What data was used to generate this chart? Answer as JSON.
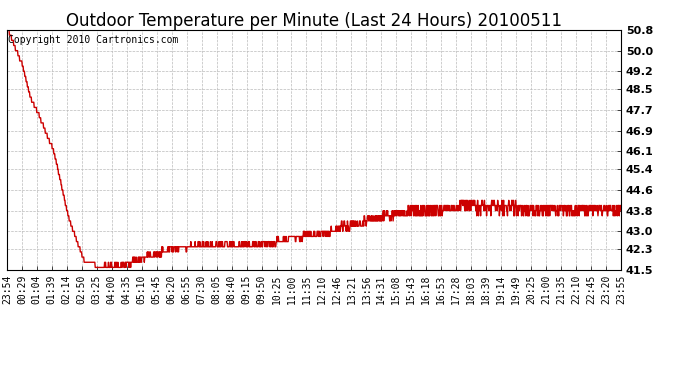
{
  "title": "Outdoor Temperature per Minute (Last 24 Hours) 20100511",
  "copyright_text": "Copyright 2010 Cartronics.com",
  "line_color": "#cc0000",
  "background_color": "#ffffff",
  "plot_bg_color": "#ffffff",
  "grid_color": "#bbbbbb",
  "ylim": [
    41.5,
    50.8
  ],
  "yticks": [
    41.5,
    42.3,
    43.0,
    43.8,
    44.6,
    45.4,
    46.1,
    46.9,
    47.7,
    48.5,
    49.2,
    50.0,
    50.8
  ],
  "x_tick_labels": [
    "23:54",
    "00:29",
    "01:04",
    "01:39",
    "02:14",
    "02:50",
    "03:25",
    "04:00",
    "04:35",
    "05:10",
    "05:45",
    "06:20",
    "06:55",
    "07:30",
    "08:05",
    "08:40",
    "09:15",
    "09:50",
    "10:25",
    "11:00",
    "11:35",
    "12:10",
    "12:46",
    "13:21",
    "13:56",
    "14:31",
    "15:08",
    "15:43",
    "16:18",
    "16:53",
    "17:28",
    "18:03",
    "18:39",
    "19:14",
    "19:49",
    "20:25",
    "21:00",
    "21:35",
    "22:10",
    "22:45",
    "23:20",
    "23:55"
  ],
  "title_fontsize": 12,
  "copyright_fontsize": 7,
  "tick_fontsize": 7,
  "ytick_fontsize": 8,
  "line_width": 1.0,
  "n_points": 1440
}
